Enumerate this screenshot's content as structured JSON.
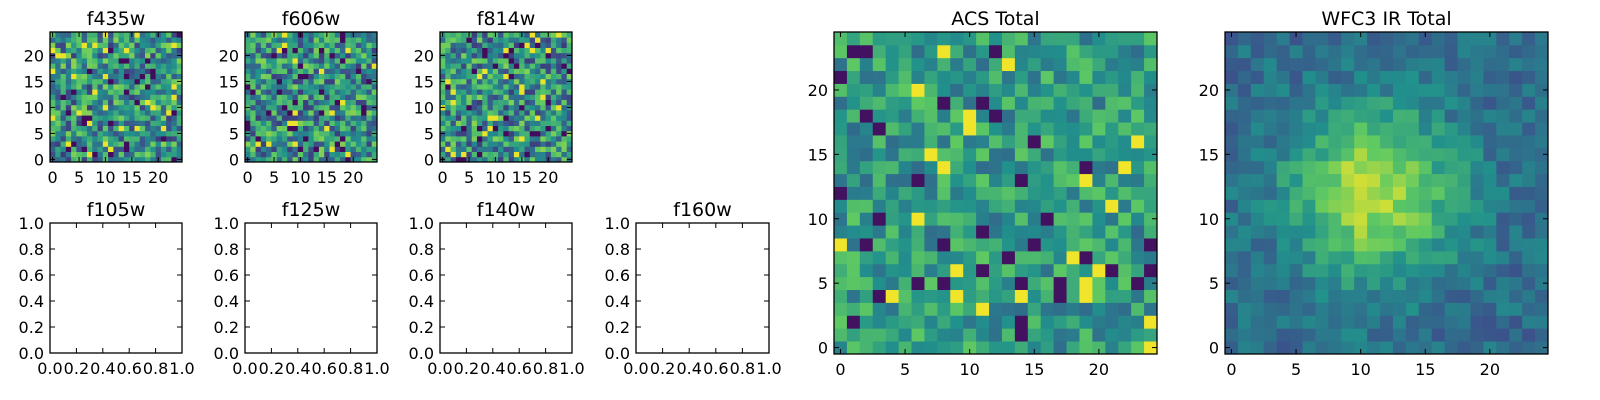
{
  "colormap": [
    "#440154",
    "#3b528b",
    "#21918c",
    "#5ec962",
    "#fde725"
  ],
  "chart_data": [
    {
      "type": "heatmap",
      "title": "f435w",
      "image_size": 25,
      "xlim": [
        -0.5,
        24.5
      ],
      "ylim": [
        -0.5,
        24.5
      ],
      "xticks": [
        0,
        5,
        10,
        15,
        20
      ],
      "yticks": [
        0,
        5,
        10,
        15,
        20
      ],
      "pattern": "noise",
      "seed": 11
    },
    {
      "type": "heatmap",
      "title": "f606w",
      "image_size": 25,
      "xlim": [
        -0.5,
        24.5
      ],
      "ylim": [
        -0.5,
        24.5
      ],
      "xticks": [
        0,
        5,
        10,
        15,
        20
      ],
      "yticks": [
        0,
        5,
        10,
        15,
        20
      ],
      "pattern": "noise",
      "seed": 23
    },
    {
      "type": "heatmap",
      "title": "f814w",
      "image_size": 25,
      "xlim": [
        -0.5,
        24.5
      ],
      "ylim": [
        -0.5,
        24.5
      ],
      "xticks": [
        0,
        5,
        10,
        15,
        20
      ],
      "yticks": [
        0,
        5,
        10,
        15,
        20
      ],
      "pattern": "noise",
      "seed": 37
    },
    {
      "type": "empty",
      "title": "f105w",
      "xlim": [
        0,
        1
      ],
      "ylim": [
        0,
        1
      ],
      "xticks": [
        0.0,
        0.2,
        0.4,
        0.6,
        0.8,
        1.0
      ],
      "yticks": [
        0.0,
        0.2,
        0.4,
        0.6,
        0.8,
        1.0
      ]
    },
    {
      "type": "empty",
      "title": "f125w",
      "xlim": [
        0,
        1
      ],
      "ylim": [
        0,
        1
      ],
      "xticks": [
        0.0,
        0.2,
        0.4,
        0.6,
        0.8,
        1.0
      ],
      "yticks": [
        0.0,
        0.2,
        0.4,
        0.6,
        0.8,
        1.0
      ]
    },
    {
      "type": "empty",
      "title": "f140w",
      "xlim": [
        0,
        1
      ],
      "ylim": [
        0,
        1
      ],
      "xticks": [
        0.0,
        0.2,
        0.4,
        0.6,
        0.8,
        1.0
      ],
      "yticks": [
        0.0,
        0.2,
        0.4,
        0.6,
        0.8,
        1.0
      ]
    },
    {
      "type": "empty",
      "title": "f160w",
      "xlim": [
        0,
        1
      ],
      "ylim": [
        0,
        1
      ],
      "xticks": [
        0.0,
        0.2,
        0.4,
        0.6,
        0.8,
        1.0
      ],
      "yticks": [
        0.0,
        0.2,
        0.4,
        0.6,
        0.8,
        1.0
      ]
    },
    {
      "type": "heatmap",
      "title": "ACS Total",
      "image_size": 25,
      "xlim": [
        -0.5,
        24.5
      ],
      "ylim": [
        -0.5,
        24.5
      ],
      "xticks": [
        0,
        5,
        10,
        15,
        20
      ],
      "yticks": [
        0,
        5,
        10,
        15,
        20
      ],
      "pattern": "noise-bright",
      "seed": 51
    },
    {
      "type": "heatmap",
      "title": "WFC3 IR Total",
      "image_size": 25,
      "xlim": [
        -0.5,
        24.5
      ],
      "ylim": [
        -0.5,
        24.5
      ],
      "xticks": [
        0,
        5,
        10,
        15,
        20
      ],
      "yticks": [
        0,
        5,
        10,
        15,
        20
      ],
      "pattern": "centered-source",
      "source_center": [
        11,
        12
      ],
      "seed": 73
    }
  ]
}
